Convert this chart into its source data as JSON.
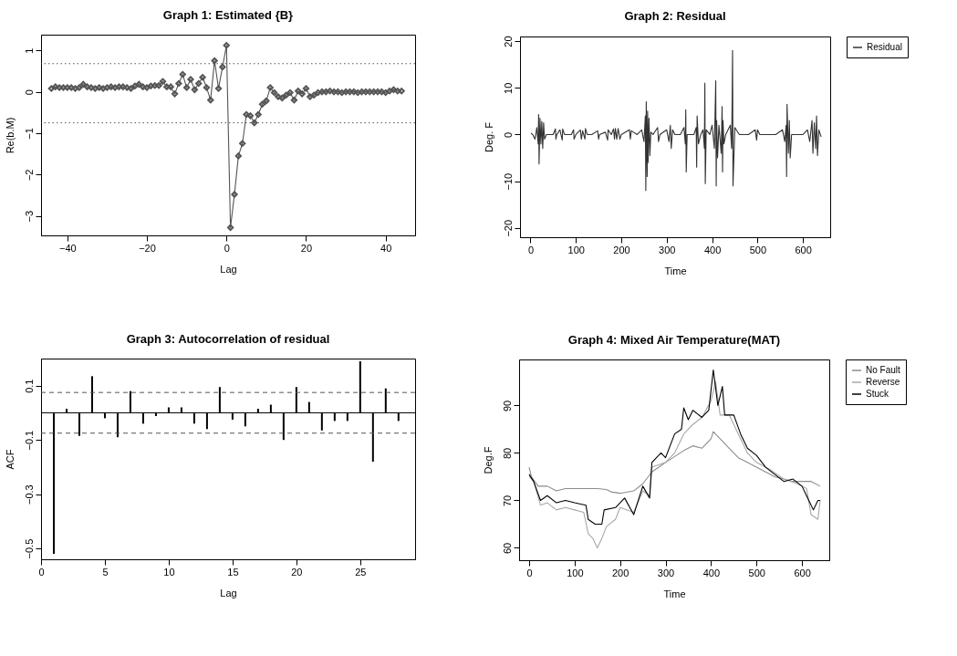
{
  "chart_data": [
    {
      "type": "line",
      "title": "Graph 1: Estimated {B}",
      "xlabel": "Lag",
      "ylabel": "Re(b.M)",
      "marker": "diamond",
      "xlim": [
        -46.6,
        47.4
      ],
      "ylim": [
        -3.47,
        1.38
      ],
      "xticks": [
        -40,
        -20,
        0,
        20,
        40
      ],
      "yticks": [
        -3,
        -2,
        -1,
        0,
        1
      ],
      "x": [
        -44,
        -43,
        -42,
        -41,
        -40,
        -39,
        -38,
        -37,
        -36,
        -35,
        -34,
        -33,
        -32,
        -31,
        -30,
        -29,
        -28,
        -27,
        -26,
        -25,
        -24,
        -23,
        -22,
        -21,
        -20,
        -19,
        -18,
        -17,
        -16,
        -15,
        -14,
        -13,
        -12,
        -11,
        -10,
        -9,
        -8,
        -7,
        -6,
        -5,
        -4,
        -3,
        -2,
        -1,
        0,
        1,
        2,
        3,
        4,
        5,
        6,
        7,
        8,
        9,
        10,
        11,
        12,
        13,
        14,
        15,
        16,
        17,
        18,
        19,
        20,
        21,
        22,
        23,
        24,
        25,
        26,
        27,
        28,
        29,
        30,
        31,
        32,
        33,
        34,
        35,
        36,
        37,
        38,
        39,
        40,
        41,
        42,
        43,
        44
      ],
      "values": [
        0.08,
        0.12,
        0.1,
        0.1,
        0.1,
        0.1,
        0.08,
        0.1,
        0.18,
        0.12,
        0.1,
        0.08,
        0.1,
        0.08,
        0.1,
        0.12,
        0.1,
        0.12,
        0.12,
        0.1,
        0.08,
        0.14,
        0.18,
        0.12,
        0.1,
        0.14,
        0.15,
        0.15,
        0.25,
        0.12,
        0.12,
        -0.05,
        0.2,
        0.42,
        0.1,
        0.3,
        0.05,
        0.2,
        0.35,
        0.1,
        -0.2,
        0.75,
        0.08,
        0.6,
        1.12,
        -3.28,
        -2.48,
        -1.55,
        -1.25,
        -0.55,
        -0.58,
        -0.75,
        -0.55,
        -0.3,
        -0.22,
        0.1,
        -0.02,
        -0.12,
        -0.15,
        -0.08,
        -0.02,
        -0.2,
        0.02,
        -0.05,
        0.08,
        -0.12,
        -0.08,
        -0.02,
        0,
        0,
        0.02,
        0,
        0,
        -0.02,
        0,
        0,
        0,
        -0.02,
        0,
        0,
        0,
        0,
        0,
        0,
        -0.02,
        0.02,
        0.05,
        0.02,
        0.02
      ],
      "color": "#555555",
      "ref_lines": [
        {
          "axis": "y",
          "value": 0.68,
          "line_style": "dotted",
          "color": "#555555"
        },
        {
          "axis": "y",
          "value": -0.75,
          "line_style": "dotted",
          "color": "#555555"
        }
      ]
    },
    {
      "type": "line",
      "title": "Graph 2: Residual",
      "xlabel": "Time",
      "ylabel": "Deg. F",
      "legend": "top right",
      "xlim": [
        -23,
        660
      ],
      "ylim": [
        -22,
        21
      ],
      "xticks": [
        0,
        100,
        200,
        300,
        400,
        500,
        600
      ],
      "yticks": [
        -20,
        -10,
        0,
        10,
        20
      ],
      "x": [
        1,
        5,
        10,
        14,
        17,
        18,
        19,
        21,
        23,
        25,
        27,
        29,
        31,
        35,
        50,
        55,
        56,
        58,
        65,
        70,
        71,
        75,
        90,
        95,
        96,
        100,
        110,
        112,
        115,
        120,
        121,
        125,
        135,
        148,
        150,
        152,
        165,
        170,
        171,
        178,
        183,
        185,
        187,
        190,
        193,
        197,
        200,
        218,
        220,
        222,
        235,
        245,
        250,
        253,
        254,
        255,
        257,
        258,
        259,
        261,
        263,
        265,
        270,
        280,
        282,
        285,
        300,
        305,
        308,
        310,
        313,
        318,
        330,
        338,
        341,
        342,
        343,
        345,
        360,
        365,
        366,
        367,
        370,
        375,
        380,
        383,
        384,
        385,
        387,
        395,
        400,
        405,
        408,
        409,
        410,
        412,
        415,
        420,
        422,
        423,
        424,
        426,
        430,
        440,
        443,
        444,
        445,
        446,
        450,
        460,
        480,
        495,
        498,
        500,
        505,
        540,
        555,
        560,
        563,
        564,
        565,
        568,
        570,
        572,
        575,
        600,
        610,
        615,
        620,
        622,
        625,
        628,
        630,
        632,
        635,
        640
      ],
      "series": [
        {
          "name": "Residual",
          "color": "#333333",
          "values": [
            0.3,
            0,
            -1,
            1.5,
            -2,
            4.3,
            -6.3,
            3.5,
            -2,
            2.8,
            -3,
            2.5,
            -1,
            0,
            0,
            1.2,
            -1,
            0,
            1,
            -1.2,
            1.2,
            0,
            0,
            1,
            -1,
            0,
            1,
            -1,
            0.8,
            -1,
            1.3,
            0,
            0,
            0.8,
            -1,
            0,
            0.5,
            -1.2,
            1,
            0,
            1.2,
            -1,
            1.3,
            -1,
            1.3,
            -1,
            0,
            1,
            -1,
            0.8,
            0,
            1,
            -1.5,
            4,
            -12,
            7,
            -9,
            5,
            -6,
            3.5,
            -4.5,
            0.5,
            0,
            1.5,
            -1.5,
            0,
            1,
            -1.5,
            2,
            -3,
            1,
            0,
            0,
            1.5,
            -2,
            5.3,
            -8,
            0,
            0,
            1.5,
            -7,
            4,
            -2,
            0,
            1,
            -3,
            11,
            -10.5,
            1,
            0,
            2,
            -3,
            11.5,
            -11,
            3,
            -5,
            2,
            -4,
            6,
            -8,
            3,
            -2,
            0,
            2,
            -3,
            6.5,
            18,
            -11,
            1.5,
            0,
            0,
            1,
            -1.2,
            1,
            0,
            0,
            1,
            -1.5,
            2,
            -9,
            6.5,
            -4,
            3,
            -5,
            0,
            0,
            1,
            -1.5,
            3,
            -4,
            2.5,
            -3,
            4,
            -4.5,
            1,
            -0.5
          ]
        }
      ]
    },
    {
      "type": "bar",
      "title": "Graph 3: Autocorrelation of residual",
      "xlabel": "Lag",
      "ylabel": "ACF",
      "xlim": [
        0,
        29.3
      ],
      "ylim": [
        -0.54,
        0.2
      ],
      "xticks": [
        0,
        5,
        10,
        15,
        20,
        25
      ],
      "yticks": [
        -0.5,
        -0.3,
        -0.1,
        0.1
      ],
      "x": [
        1,
        2,
        3,
        4,
        5,
        6,
        7,
        8,
        9,
        10,
        11,
        12,
        13,
        14,
        15,
        16,
        17,
        18,
        19,
        20,
        21,
        22,
        23,
        24,
        25,
        26,
        27,
        28
      ],
      "values": [
        -0.52,
        0.015,
        -0.085,
        0.135,
        -0.02,
        -0.09,
        0.08,
        -0.04,
        -0.012,
        0.02,
        0.02,
        -0.04,
        -0.06,
        0.095,
        -0.025,
        -0.05,
        0.015,
        0.03,
        -0.1,
        0.095,
        0.04,
        -0.065,
        -0.03,
        -0.03,
        0.19,
        -0.18,
        0.09,
        -0.03
      ],
      "color": "#000000",
      "ref_lines": [
        {
          "axis": "y",
          "value": 0,
          "line_style": "solid",
          "color": "#000000"
        },
        {
          "axis": "y",
          "value": 0.075,
          "line_style": "dashed",
          "color": "#555555"
        },
        {
          "axis": "y",
          "value": -0.075,
          "line_style": "dashed",
          "color": "#555555"
        }
      ]
    },
    {
      "type": "line",
      "title": "Graph 4: Mixed Air Temperature(MAT)",
      "xlabel": "Time",
      "ylabel": "Deg.F",
      "legend": "top right",
      "xlim": [
        -22,
        660
      ],
      "ylim": [
        57.4,
        99.7
      ],
      "xticks": [
        0,
        100,
        200,
        300,
        400,
        500,
        600
      ],
      "yticks": [
        60,
        70,
        80,
        90
      ],
      "series": [
        {
          "name": "No Fault",
          "color": "#8c8c8c",
          "x": [
            0,
            5,
            20,
            40,
            60,
            80,
            100,
            150,
            170,
            180,
            200,
            230,
            250,
            270,
            300,
            340,
            360,
            380,
            400,
            405,
            420,
            440,
            460,
            480,
            500,
            520,
            540,
            560,
            580,
            600,
            620,
            640
          ],
          "values": [
            77,
            75,
            73,
            73,
            72,
            72.5,
            72.5,
            72.5,
            72.3,
            71.8,
            71.5,
            72,
            73.5,
            76,
            78,
            80.5,
            81.5,
            81,
            83,
            84.5,
            83,
            81,
            79,
            78,
            77,
            76,
            75,
            74.5,
            74,
            74,
            74,
            73
          ]
        },
        {
          "name": "Reverse",
          "color": "#a8a8a8",
          "x": [
            0,
            10,
            25,
            40,
            60,
            80,
            100,
            120,
            130,
            140,
            150,
            160,
            170,
            190,
            200,
            230,
            250,
            265,
            270,
            300,
            320,
            340,
            360,
            380,
            400,
            410,
            420,
            440,
            460,
            480,
            500,
            530,
            560,
            590,
            610,
            620,
            635,
            640
          ],
          "values": [
            75,
            74,
            69,
            69.5,
            68,
            68.5,
            68,
            67.5,
            63,
            62,
            60,
            62,
            64.5,
            66,
            68.5,
            67.5,
            72,
            71,
            77,
            78,
            80,
            84,
            86,
            87.5,
            91,
            95,
            88,
            88,
            84,
            80,
            78,
            76.5,
            74.5,
            73.5,
            72.5,
            67,
            66,
            70
          ]
        },
        {
          "name": "Stuck",
          "color": "#000000",
          "x": [
            0,
            10,
            25,
            40,
            60,
            80,
            100,
            125,
            130,
            145,
            160,
            165,
            190,
            210,
            230,
            250,
            265,
            270,
            290,
            300,
            320,
            335,
            340,
            350,
            360,
            380,
            395,
            405,
            415,
            425,
            430,
            450,
            465,
            480,
            500,
            520,
            540,
            560,
            580,
            600,
            615,
            625,
            635,
            640
          ],
          "values": [
            75.5,
            74,
            70,
            71,
            69.5,
            70,
            69.5,
            69,
            66,
            65,
            65,
            68,
            68.5,
            70.5,
            67,
            73,
            70.5,
            78,
            80,
            79,
            84,
            85,
            89.5,
            87,
            89,
            87.5,
            89,
            97.5,
            90,
            94,
            88,
            88,
            84,
            81,
            79.5,
            77,
            75.5,
            74,
            74.5,
            73,
            70,
            68,
            70,
            70
          ]
        }
      ]
    }
  ]
}
